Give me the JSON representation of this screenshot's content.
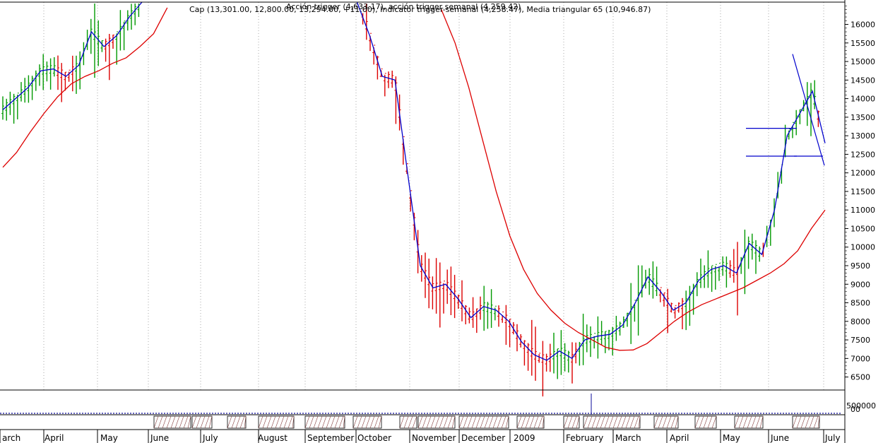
{
  "header": {
    "line1": "Cap (13,301.00, 12,800.00, 13,294.00, +11.00), Indicator trigger-semanal (4,258.47), Media triangular 65 (10,946.87)",
    "line2": "Acción trigger (4,633.17), acción trigger semanal (4,259.42)"
  },
  "chart_data": {
    "type": "bar",
    "subtype": "ohlc",
    "yaxis": {
      "ticks": [
        6500,
        7000,
        7500,
        8000,
        8500,
        9000,
        9500,
        10000,
        10500,
        11000,
        11500,
        12000,
        12500,
        13000,
        13500,
        14000,
        14500,
        15000,
        15500,
        16000
      ],
      "ylim": [
        6150,
        16600
      ]
    },
    "volume_axis": {
      "ticks": [
        "500000",
        "00"
      ]
    },
    "xaxis": {
      "month_labels": [
        "arch",
        "April",
        "May",
        "June",
        "July",
        "August",
        "September",
        "October",
        "November",
        "December",
        "2009",
        "February",
        "March",
        "April",
        "May",
        "June",
        "July"
      ]
    },
    "series": [
      {
        "name": "Cap",
        "kind": "ohlc",
        "color_up": "#009900",
        "color_down": "#dd0000"
      },
      {
        "name": "trigger",
        "kind": "line",
        "color": "#0000cc",
        "values": [
          13700,
          14000,
          14300,
          14750,
          14800,
          14600,
          14900,
          15800,
          15400,
          15700,
          16200,
          16600,
          null,
          null,
          null,
          null,
          null,
          null,
          null,
          null,
          null,
          null,
          null,
          null,
          null,
          null,
          null,
          null,
          16800,
          15700,
          14600,
          14500,
          12000,
          9500,
          8900,
          9000,
          8600,
          8100,
          8400,
          8300,
          8000,
          7450,
          7100,
          6950,
          7200,
          7000,
          7500,
          7600,
          7650,
          7900,
          8500,
          9200,
          8800,
          8300,
          8500,
          9100,
          9400,
          9500,
          9300,
          10100,
          9800,
          11000,
          13000,
          13600,
          14200,
          12800
        ]
      },
      {
        "name": "Media triangular 65",
        "kind": "line",
        "color": "#dd0000",
        "values": [
          12150,
          12550,
          13100,
          13600,
          14050,
          14400,
          14600,
          14750,
          14950,
          15100,
          15400,
          15750,
          16450,
          null,
          null,
          null,
          null,
          null,
          null,
          null,
          null,
          null,
          null,
          null,
          null,
          null,
          null,
          null,
          null,
          null,
          null,
          null,
          16400,
          15500,
          14300,
          12900,
          11500,
          10300,
          9400,
          8750,
          8300,
          7950,
          7700,
          7500,
          7300,
          7220,
          7230,
          7400,
          7700,
          8000,
          8250,
          8450,
          8600,
          8750,
          8900,
          9100,
          9300,
          9550,
          9900,
          10500,
          11000
        ]
      }
    ],
    "annotations": [
      {
        "type": "hline",
        "y": 13200,
        "x_range": [
          "May",
          "June"
        ]
      },
      {
        "type": "hline",
        "y": 12450,
        "x_range": [
          "May",
          "June"
        ]
      },
      {
        "type": "hline",
        "y": 12450,
        "x_range": [
          "June",
          "July"
        ]
      },
      {
        "type": "trendline",
        "from": 15200,
        "to": 12200,
        "x_range": [
          "June",
          "July"
        ]
      }
    ],
    "grid": "vertical-dotted",
    "legend": "none"
  }
}
